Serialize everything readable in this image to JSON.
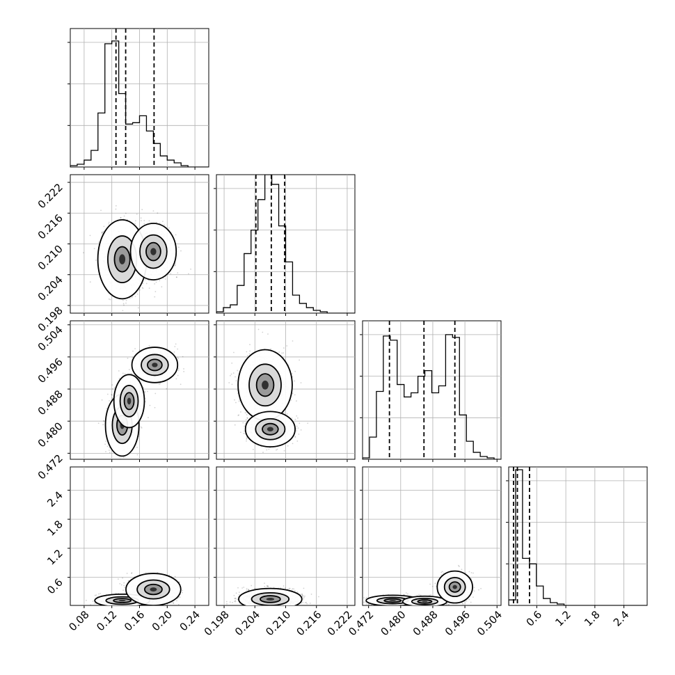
{
  "chart_data": {
    "type": "corner",
    "title": "",
    "grid": true,
    "parameters": [
      {
        "range": [
          0.06,
          0.26
        ],
        "ticks": [
          "0.08",
          "0.12",
          "0.16",
          "0.20",
          "0.24"
        ],
        "quantiles": [
          0.126,
          0.14,
          0.181
        ]
      },
      {
        "range": [
          0.1965,
          0.2235
        ],
        "ticks": [
          "0.198",
          "0.204",
          "0.210",
          "0.216",
          "0.222"
        ],
        "quantiles": [
          0.2042,
          0.2072,
          0.2098
        ]
      },
      {
        "range": [
          0.4705,
          0.505
        ],
        "ticks": [
          "0.472",
          "0.480",
          "0.488",
          "0.496",
          "0.504"
        ],
        "quantiles": [
          0.4772,
          0.4858,
          0.4935
        ]
      },
      {
        "range": [
          0.02,
          2.88
        ],
        "ticks": [
          "0.6",
          "1.2",
          "1.8",
          "2.4"
        ],
        "quantiles": [
          0.12,
          0.2,
          0.45
        ]
      }
    ],
    "histograms": [
      {
        "counts": [
          0.01,
          0.02,
          0.05,
          0.12,
          0.39,
          0.89,
          0.91,
          0.53,
          0.31,
          0.32,
          0.37,
          0.26,
          0.17,
          0.08,
          0.05,
          0.03,
          0.01,
          0.0,
          0.0,
          0.0
        ]
      },
      {
        "counts": [
          0.01,
          0.04,
          0.06,
          0.2,
          0.43,
          0.6,
          0.82,
          1.0,
          0.93,
          0.63,
          0.37,
          0.13,
          0.07,
          0.04,
          0.02,
          0.01,
          0.0,
          0.0,
          0.0,
          0.0
        ]
      },
      {
        "counts": [
          0.01,
          0.16,
          0.49,
          0.89,
          0.86,
          0.54,
          0.45,
          0.48,
          0.6,
          0.64,
          0.48,
          0.53,
          0.9,
          0.88,
          0.32,
          0.13,
          0.05,
          0.02,
          0.01,
          0.0
        ]
      },
      {
        "counts": [
          0.04,
          0.98,
          0.34,
          0.3,
          0.14,
          0.05,
          0.02,
          0.01,
          0.0,
          0.0,
          0.0,
          0.0,
          0.0,
          0.0,
          0.0,
          0.0,
          0.0,
          0.0,
          0.0,
          0.0
        ]
      }
    ],
    "correlations": [
      {
        "row": 1,
        "col": 0,
        "clusters": [
          {
            "center": [
              0.135,
              0.207
            ],
            "sd": [
              0.016,
              0.0035
            ]
          },
          {
            "center": [
              0.18,
              0.2085
            ],
            "sd": [
              0.015,
              0.0025
            ]
          }
        ]
      },
      {
        "row": 2,
        "col": 0,
        "clusters": [
          {
            "center": [
              0.135,
              0.479
            ],
            "sd": [
              0.011,
              0.0035
            ]
          },
          {
            "center": [
              0.145,
              0.485
            ],
            "sd": [
              0.01,
              0.003
            ]
          },
          {
            "center": [
              0.182,
              0.494
            ],
            "sd": [
              0.015,
              0.002
            ]
          }
        ]
      },
      {
        "row": 2,
        "col": 1,
        "clusters": [
          {
            "center": [
              0.206,
              0.489
            ],
            "sd": [
              0.0024,
              0.004
            ]
          },
          {
            "center": [
              0.207,
              0.478
            ],
            "sd": [
              0.0022,
              0.002
            ]
          }
        ]
      },
      {
        "row": 3,
        "col": 0,
        "clusters": [
          {
            "center": [
              0.135,
              0.12
            ],
            "sd": [
              0.018,
              0.06
            ]
          },
          {
            "center": [
              0.18,
              0.35
            ],
            "sd": [
              0.018,
              0.15
            ]
          }
        ]
      },
      {
        "row": 3,
        "col": 1,
        "clusters": [
          {
            "center": [
              0.207,
              0.15
            ],
            "sd": [
              0.0028,
              0.1
            ]
          }
        ]
      },
      {
        "row": 3,
        "col": 2,
        "clusters": [
          {
            "center": [
              0.478,
              0.12
            ],
            "sd": [
              0.003,
              0.05
            ]
          },
          {
            "center": [
              0.486,
              0.1
            ],
            "sd": [
              0.0025,
              0.05
            ]
          },
          {
            "center": [
              0.4935,
              0.4
            ],
            "sd": [
              0.002,
              0.15
            ]
          }
        ]
      }
    ],
    "contour_levels": [
      "0.5",
      "1.0",
      "1.5",
      "2.0"
    ]
  }
}
